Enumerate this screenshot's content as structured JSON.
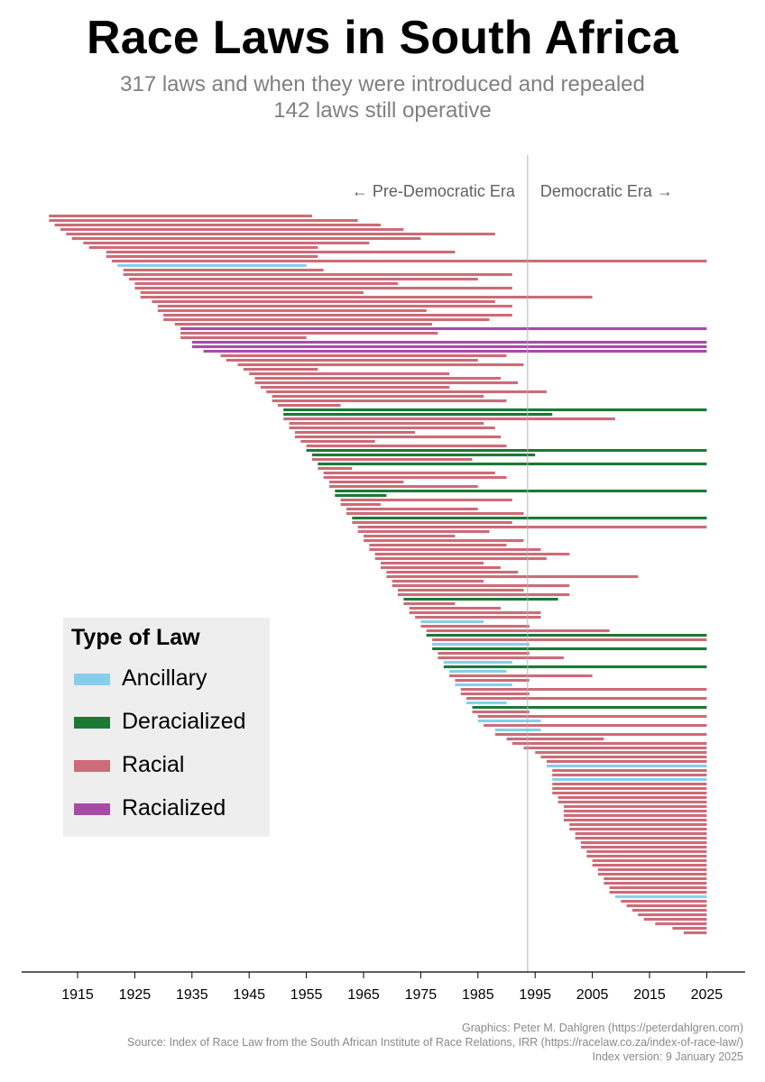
{
  "title": "Race Laws in South Africa",
  "subtitle_line1": "317 laws and when they were introduced and repealed",
  "subtitle_line2": "142 laws still operative",
  "chart_data": {
    "type": "bar",
    "orientation": "horizontal-timeline",
    "x_ticks": [
      1915,
      1925,
      1935,
      1945,
      1955,
      1965,
      1975,
      1985,
      1995,
      2005,
      2015,
      2025
    ],
    "x_tick_labels": [
      "1915",
      "1925",
      "1935",
      "1945",
      "1955",
      "1965",
      "1975",
      "1985",
      "1995",
      "2005",
      "2015",
      "2025"
    ],
    "xlim": [
      1905,
      2031
    ],
    "divider_year": 1994,
    "era_labels": {
      "left": "← Pre-Democratic Era",
      "right": "Democratic Era →"
    },
    "legend_title": "Type of Law",
    "categories": [
      {
        "name": "Ancillary",
        "color": "#87ceeb"
      },
      {
        "name": "Deracialized",
        "color": "#1a7a35"
      },
      {
        "name": "Racial",
        "color": "#cd6b78"
      },
      {
        "name": "Racialized",
        "color": "#a64ca6"
      }
    ],
    "total_laws": 317,
    "laws_operative": 142,
    "series": [
      {
        "start": 1910,
        "end": 1956,
        "type": "Racial"
      },
      {
        "start": 1910,
        "end": 1964,
        "type": "Racial"
      },
      {
        "start": 1911,
        "end": 1968,
        "type": "Racial"
      },
      {
        "start": 1912,
        "end": 1972,
        "type": "Racial"
      },
      {
        "start": 1913,
        "end": 1988,
        "type": "Racial"
      },
      {
        "start": 1914,
        "end": 1975,
        "type": "Racial"
      },
      {
        "start": 1916,
        "end": 1966,
        "type": "Racial"
      },
      {
        "start": 1917,
        "end": 1957,
        "type": "Racial"
      },
      {
        "start": 1920,
        "end": 1981,
        "type": "Racial"
      },
      {
        "start": 1920,
        "end": 1957,
        "type": "Racial"
      },
      {
        "start": 1921,
        "end": 2025,
        "type": "Racial"
      },
      {
        "start": 1922,
        "end": 1955,
        "type": "Ancillary"
      },
      {
        "start": 1923,
        "end": 1958,
        "type": "Racial"
      },
      {
        "start": 1923,
        "end": 1991,
        "type": "Racial"
      },
      {
        "start": 1924,
        "end": 1985,
        "type": "Racial"
      },
      {
        "start": 1925,
        "end": 1971,
        "type": "Racial"
      },
      {
        "start": 1925,
        "end": 1991,
        "type": "Racial"
      },
      {
        "start": 1926,
        "end": 1965,
        "type": "Racial"
      },
      {
        "start": 1926,
        "end": 2005,
        "type": "Racial"
      },
      {
        "start": 1928,
        "end": 1988,
        "type": "Racial"
      },
      {
        "start": 1929,
        "end": 1991,
        "type": "Racial"
      },
      {
        "start": 1929,
        "end": 1976,
        "type": "Racial"
      },
      {
        "start": 1930,
        "end": 1991,
        "type": "Racial"
      },
      {
        "start": 1930,
        "end": 1987,
        "type": "Racial"
      },
      {
        "start": 1932,
        "end": 1977,
        "type": "Racial"
      },
      {
        "start": 1933,
        "end": 2025,
        "type": "Racialized"
      },
      {
        "start": 1933,
        "end": 1978,
        "type": "Racial"
      },
      {
        "start": 1933,
        "end": 1955,
        "type": "Racial"
      },
      {
        "start": 1935,
        "end": 2025,
        "type": "Racialized"
      },
      {
        "start": 1935,
        "end": 2025,
        "type": "Racialized"
      },
      {
        "start": 1937,
        "end": 2025,
        "type": "Racialized"
      },
      {
        "start": 1940,
        "end": 1990,
        "type": "Racial"
      },
      {
        "start": 1941,
        "end": 1985,
        "type": "Racial"
      },
      {
        "start": 1943,
        "end": 1993,
        "type": "Racial"
      },
      {
        "start": 1944,
        "end": 1957,
        "type": "Racial"
      },
      {
        "start": 1945,
        "end": 1980,
        "type": "Racial"
      },
      {
        "start": 1946,
        "end": 1989,
        "type": "Racial"
      },
      {
        "start": 1946,
        "end": 1992,
        "type": "Racial"
      },
      {
        "start": 1947,
        "end": 1980,
        "type": "Racial"
      },
      {
        "start": 1948,
        "end": 1997,
        "type": "Racial"
      },
      {
        "start": 1949,
        "end": 1986,
        "type": "Racial"
      },
      {
        "start": 1949,
        "end": 1990,
        "type": "Racial"
      },
      {
        "start": 1950,
        "end": 1961,
        "type": "Racial"
      },
      {
        "start": 1951,
        "end": 2025,
        "type": "Deracialized"
      },
      {
        "start": 1951,
        "end": 1998,
        "type": "Deracialized"
      },
      {
        "start": 1951,
        "end": 2009,
        "type": "Racial"
      },
      {
        "start": 1952,
        "end": 1986,
        "type": "Racial"
      },
      {
        "start": 1952,
        "end": 1988,
        "type": "Racial"
      },
      {
        "start": 1953,
        "end": 1974,
        "type": "Racial"
      },
      {
        "start": 1953,
        "end": 1989,
        "type": "Racial"
      },
      {
        "start": 1954,
        "end": 1967,
        "type": "Racial"
      },
      {
        "start": 1955,
        "end": 1990,
        "type": "Racial"
      },
      {
        "start": 1955,
        "end": 2025,
        "type": "Deracialized"
      },
      {
        "start": 1956,
        "end": 1995,
        "type": "Deracialized"
      },
      {
        "start": 1956,
        "end": 1984,
        "type": "Racial"
      },
      {
        "start": 1957,
        "end": 2025,
        "type": "Deracialized"
      },
      {
        "start": 1957,
        "end": 1963,
        "type": "Racial"
      },
      {
        "start": 1958,
        "end": 1988,
        "type": "Racial"
      },
      {
        "start": 1958,
        "end": 1990,
        "type": "Racial"
      },
      {
        "start": 1959,
        "end": 1972,
        "type": "Racial"
      },
      {
        "start": 1959,
        "end": 1985,
        "type": "Racial"
      },
      {
        "start": 1960,
        "end": 2025,
        "type": "Deracialized"
      },
      {
        "start": 1960,
        "end": 1969,
        "type": "Deracialized"
      },
      {
        "start": 1961,
        "end": 1991,
        "type": "Racial"
      },
      {
        "start": 1961,
        "end": 1968,
        "type": "Racial"
      },
      {
        "start": 1962,
        "end": 1985,
        "type": "Racial"
      },
      {
        "start": 1962,
        "end": 1993,
        "type": "Racial"
      },
      {
        "start": 1963,
        "end": 2025,
        "type": "Deracialized"
      },
      {
        "start": 1963,
        "end": 1991,
        "type": "Racial"
      },
      {
        "start": 1964,
        "end": 2025,
        "type": "Racial"
      },
      {
        "start": 1964,
        "end": 1987,
        "type": "Racial"
      },
      {
        "start": 1965,
        "end": 1981,
        "type": "Racial"
      },
      {
        "start": 1965,
        "end": 1993,
        "type": "Racial"
      },
      {
        "start": 1966,
        "end": 1990,
        "type": "Racial"
      },
      {
        "start": 1966,
        "end": 1996,
        "type": "Racial"
      },
      {
        "start": 1967,
        "end": 2001,
        "type": "Racial"
      },
      {
        "start": 1967,
        "end": 1997,
        "type": "Racial"
      },
      {
        "start": 1968,
        "end": 1986,
        "type": "Racial"
      },
      {
        "start": 1968,
        "end": 1989,
        "type": "Racial"
      },
      {
        "start": 1969,
        "end": 1992,
        "type": "Racial"
      },
      {
        "start": 1969,
        "end": 2013,
        "type": "Racial"
      },
      {
        "start": 1970,
        "end": 1986,
        "type": "Racial"
      },
      {
        "start": 1970,
        "end": 2001,
        "type": "Racial"
      },
      {
        "start": 1971,
        "end": 1993,
        "type": "Racial"
      },
      {
        "start": 1971,
        "end": 2001,
        "type": "Racial"
      },
      {
        "start": 1972,
        "end": 1999,
        "type": "Deracialized"
      },
      {
        "start": 1972,
        "end": 1981,
        "type": "Racial"
      },
      {
        "start": 1973,
        "end": 1989,
        "type": "Racial"
      },
      {
        "start": 1973,
        "end": 1996,
        "type": "Racial"
      },
      {
        "start": 1974,
        "end": 1996,
        "type": "Racial"
      },
      {
        "start": 1975,
        "end": 1986,
        "type": "Ancillary"
      },
      {
        "start": 1975,
        "end": 1994,
        "type": "Racial"
      },
      {
        "start": 1976,
        "end": 2008,
        "type": "Racial"
      },
      {
        "start": 1976,
        "end": 2025,
        "type": "Deracialized"
      },
      {
        "start": 1977,
        "end": 2025,
        "type": "Racial"
      },
      {
        "start": 1977,
        "end": 1994,
        "type": "Ancillary"
      },
      {
        "start": 1977,
        "end": 2025,
        "type": "Deracialized"
      },
      {
        "start": 1978,
        "end": 1994,
        "type": "Racial"
      },
      {
        "start": 1978,
        "end": 2000,
        "type": "Racial"
      },
      {
        "start": 1979,
        "end": 1991,
        "type": "Ancillary"
      },
      {
        "start": 1979,
        "end": 2025,
        "type": "Deracialized"
      },
      {
        "start": 1980,
        "end": 1990,
        "type": "Ancillary"
      },
      {
        "start": 1980,
        "end": 2005,
        "type": "Racial"
      },
      {
        "start": 1981,
        "end": 1994,
        "type": "Racial"
      },
      {
        "start": 1981,
        "end": 1991,
        "type": "Ancillary"
      },
      {
        "start": 1982,
        "end": 2025,
        "type": "Racial"
      },
      {
        "start": 1982,
        "end": 1994,
        "type": "Racial"
      },
      {
        "start": 1983,
        "end": 2025,
        "type": "Racial"
      },
      {
        "start": 1983,
        "end": 1990,
        "type": "Ancillary"
      },
      {
        "start": 1984,
        "end": 2025,
        "type": "Deracialized"
      },
      {
        "start": 1984,
        "end": 1994,
        "type": "Racial"
      },
      {
        "start": 1985,
        "end": 2025,
        "type": "Racial"
      },
      {
        "start": 1985,
        "end": 1996,
        "type": "Ancillary"
      },
      {
        "start": 1986,
        "end": 2025,
        "type": "Racial"
      },
      {
        "start": 1988,
        "end": 1996,
        "type": "Ancillary"
      },
      {
        "start": 1988,
        "end": 2025,
        "type": "Racial"
      },
      {
        "start": 1990,
        "end": 2007,
        "type": "Racial"
      },
      {
        "start": 1991,
        "end": 2025,
        "type": "Racial"
      },
      {
        "start": 1993,
        "end": 2025,
        "type": "Racial"
      },
      {
        "start": 1995,
        "end": 2025,
        "type": "Racial"
      },
      {
        "start": 1996,
        "end": 2025,
        "type": "Racial"
      },
      {
        "start": 1997,
        "end": 2025,
        "type": "Racial"
      },
      {
        "start": 1997,
        "end": 2025,
        "type": "Ancillary"
      },
      {
        "start": 1998,
        "end": 2025,
        "type": "Racial"
      },
      {
        "start": 1998,
        "end": 2025,
        "type": "Racial"
      },
      {
        "start": 1998,
        "end": 2025,
        "type": "Ancillary"
      },
      {
        "start": 1998,
        "end": 2025,
        "type": "Racial"
      },
      {
        "start": 1998,
        "end": 2025,
        "type": "Racial"
      },
      {
        "start": 1998,
        "end": 2025,
        "type": "Racial"
      },
      {
        "start": 1999,
        "end": 2025,
        "type": "Racial"
      },
      {
        "start": 1999,
        "end": 2025,
        "type": "Racial"
      },
      {
        "start": 2000,
        "end": 2025,
        "type": "Racial"
      },
      {
        "start": 2000,
        "end": 2025,
        "type": "Racial"
      },
      {
        "start": 2000,
        "end": 2025,
        "type": "Racial"
      },
      {
        "start": 2000,
        "end": 2025,
        "type": "Racial"
      },
      {
        "start": 2001,
        "end": 2025,
        "type": "Racial"
      },
      {
        "start": 2001,
        "end": 2025,
        "type": "Racial"
      },
      {
        "start": 2002,
        "end": 2025,
        "type": "Racial"
      },
      {
        "start": 2002,
        "end": 2025,
        "type": "Racial"
      },
      {
        "start": 2003,
        "end": 2025,
        "type": "Racial"
      },
      {
        "start": 2003,
        "end": 2025,
        "type": "Racial"
      },
      {
        "start": 2004,
        "end": 2025,
        "type": "Racial"
      },
      {
        "start": 2004,
        "end": 2025,
        "type": "Racial"
      },
      {
        "start": 2005,
        "end": 2025,
        "type": "Racial"
      },
      {
        "start": 2005,
        "end": 2025,
        "type": "Racial"
      },
      {
        "start": 2006,
        "end": 2025,
        "type": "Racial"
      },
      {
        "start": 2006,
        "end": 2025,
        "type": "Racial"
      },
      {
        "start": 2007,
        "end": 2025,
        "type": "Racial"
      },
      {
        "start": 2007,
        "end": 2025,
        "type": "Racial"
      },
      {
        "start": 2008,
        "end": 2025,
        "type": "Racial"
      },
      {
        "start": 2008,
        "end": 2025,
        "type": "Racial"
      },
      {
        "start": 2009,
        "end": 2025,
        "type": "Ancillary"
      },
      {
        "start": 2010,
        "end": 2025,
        "type": "Racial"
      },
      {
        "start": 2011,
        "end": 2025,
        "type": "Racial"
      },
      {
        "start": 2012,
        "end": 2025,
        "type": "Racial"
      },
      {
        "start": 2013,
        "end": 2025,
        "type": "Racial"
      },
      {
        "start": 2014,
        "end": 2025,
        "type": "Racial"
      },
      {
        "start": 2016,
        "end": 2025,
        "type": "Racial"
      },
      {
        "start": 2019,
        "end": 2025,
        "type": "Racial"
      },
      {
        "start": 2021,
        "end": 2025,
        "type": "Racial"
      }
    ]
  },
  "credits": {
    "line1": "Graphics: Peter M. Dahlgren (https://peterdahlgren.com)",
    "line2": "Source: Index of Race Law from the South African Institute of Race Relations, IRR (https://racelaw.co.za/index-of-race-law/)",
    "line3": "Index version: 9 January 2025"
  }
}
